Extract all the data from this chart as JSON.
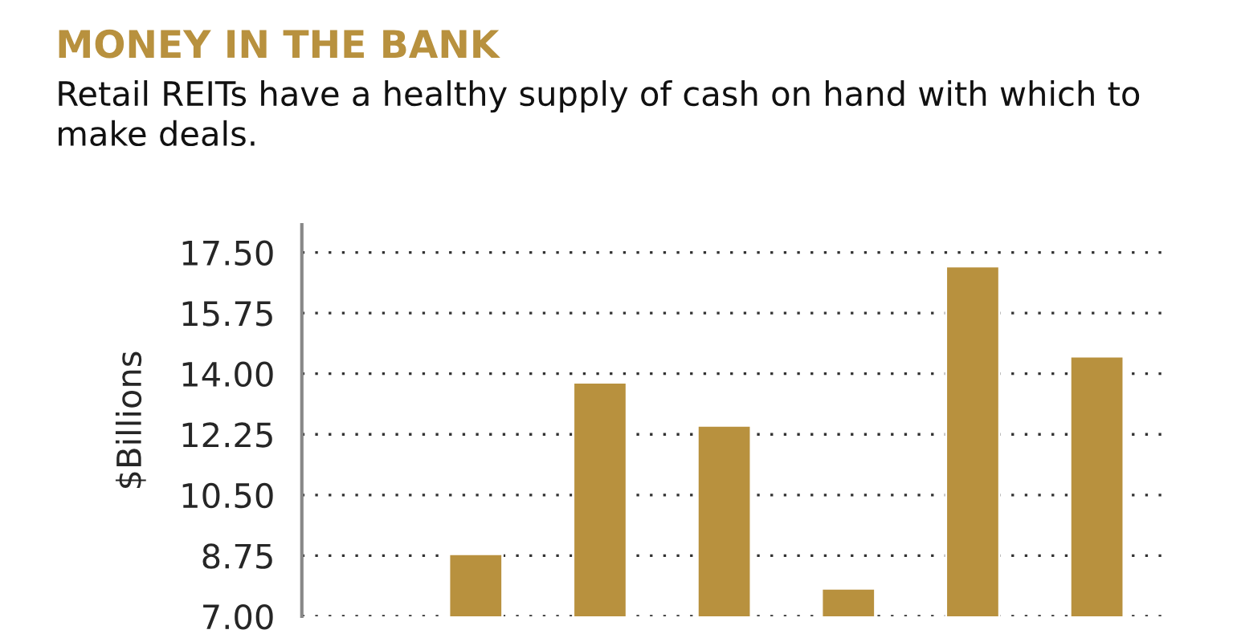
{
  "chart_data": {
    "type": "bar",
    "title": "MONEY IN THE BANK",
    "subtitle": "Retail REITs have a healthy supply of cash on hand with which to make deals.",
    "ylabel": "$Billions",
    "categories": [
      null,
      null,
      null,
      null,
      null,
      null
    ],
    "values": [
      8.8,
      13.75,
      12.5,
      7.8,
      17.1,
      14.5
    ],
    "color": "#b8913e",
    "ylim": [
      7.0,
      18.3
    ],
    "yticks": [
      {
        "value": 7.0,
        "label": "7.00"
      },
      {
        "value": 8.75,
        "label": "8.75"
      },
      {
        "value": 10.5,
        "label": "10.50"
      },
      {
        "value": 12.25,
        "label": "12.25"
      },
      {
        "value": 14.0,
        "label": "14.00"
      },
      {
        "value": 15.75,
        "label": "15.75"
      },
      {
        "value": 17.5,
        "label": "17.50"
      }
    ],
    "grid": "y",
    "line_style": "dotted",
    "tick_labels": "y"
  }
}
